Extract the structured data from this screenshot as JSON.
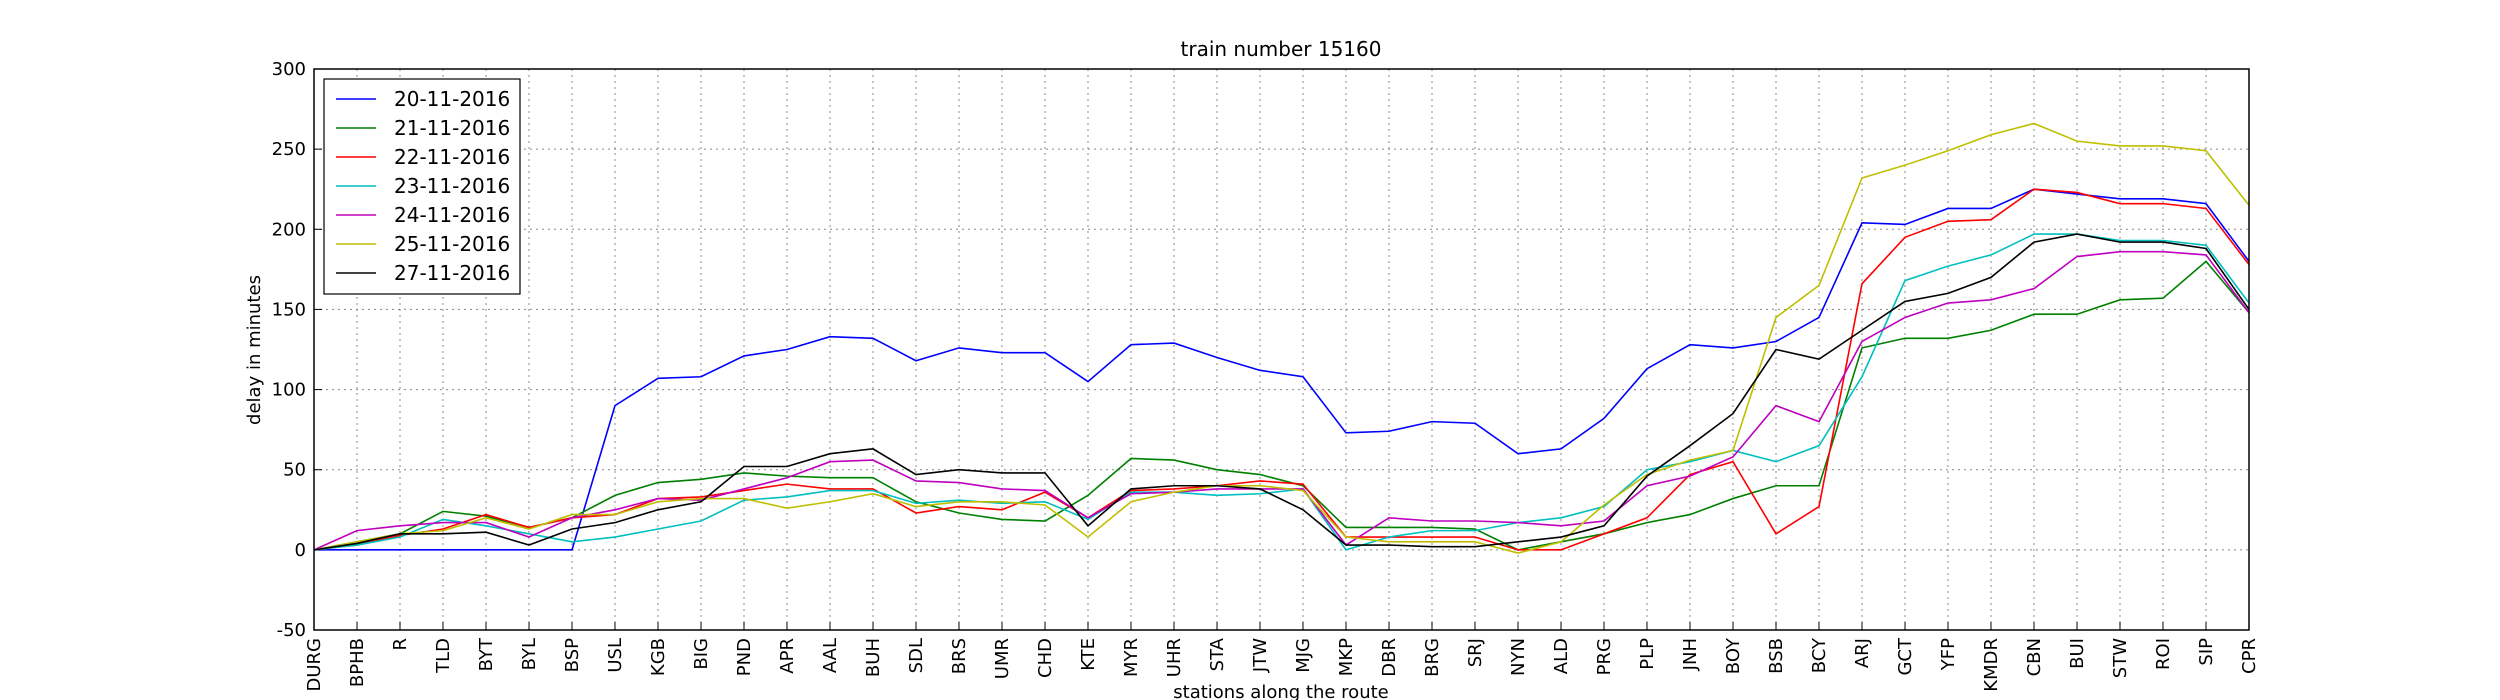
{
  "chart_data": {
    "type": "line",
    "title": "train number 15160",
    "xlabel": "stations along the route",
    "ylabel": "delay in minutes",
    "categories": [
      "DURG",
      "BPHB",
      "R",
      "TLD",
      "BYT",
      "BYL",
      "BSP",
      "USL",
      "KGB",
      "BIG",
      "PND",
      "APR",
      "AAL",
      "BUH",
      "SDL",
      "BRS",
      "UMR",
      "CHD",
      "KTE",
      "MYR",
      "UHR",
      "STA",
      "JTW",
      "MJG",
      "MKP",
      "DBR",
      "BRG",
      "SRJ",
      "NYN",
      "ALD",
      "PRG",
      "PLP",
      "JNH",
      "BOY",
      "BSB",
      "BCY",
      "ARJ",
      "GCT",
      "YFP",
      "KMDR",
      "CBN",
      "BUI",
      "STW",
      "ROI",
      "SIP",
      "CPR"
    ],
    "series": [
      {
        "name": "20-11-2016",
        "color": "#0000ff",
        "values": [
          0,
          0,
          0,
          0,
          0,
          0,
          0,
          90,
          107,
          108,
          121,
          125,
          133,
          132,
          118,
          126,
          123,
          123,
          105,
          128,
          129,
          120,
          112,
          108,
          73,
          74,
          80,
          79,
          60,
          63,
          82,
          113,
          128,
          126,
          130,
          145,
          204,
          203,
          213,
          213,
          225,
          222,
          219,
          219,
          216,
          180
        ]
      },
      {
        "name": "21-11-2016",
        "color": "#008000",
        "values": [
          0,
          5,
          10,
          24,
          21,
          14,
          20,
          34,
          42,
          44,
          48,
          46,
          45,
          45,
          30,
          23,
          19,
          18,
          34,
          57,
          56,
          50,
          47,
          40,
          14,
          14,
          14,
          13,
          0,
          5,
          10,
          17,
          22,
          32,
          40,
          40,
          126,
          132,
          132,
          137,
          147,
          147,
          156,
          157,
          180,
          148
        ]
      },
      {
        "name": "22-11-2016",
        "color": "#ff0000",
        "values": [
          0,
          3,
          9,
          13,
          22,
          14,
          20,
          22,
          32,
          33,
          37,
          41,
          38,
          38,
          23,
          27,
          25,
          36,
          20,
          37,
          38,
          40,
          43,
          41,
          8,
          8,
          8,
          8,
          0,
          0,
          10,
          20,
          47,
          55,
          10,
          27,
          166,
          195,
          205,
          206,
          225,
          223,
          216,
          216,
          213,
          178
        ]
      },
      {
        "name": "23-11-2016",
        "color": "#00bfbf",
        "values": [
          0,
          3,
          8,
          19,
          15,
          10,
          5,
          8,
          13,
          18,
          31,
          33,
          37,
          37,
          29,
          31,
          29,
          30,
          19,
          36,
          36,
          34,
          35,
          38,
          0,
          8,
          12,
          12,
          17,
          20,
          27,
          50,
          55,
          62,
          55,
          65,
          108,
          168,
          177,
          184,
          197,
          197,
          193,
          193,
          190,
          154
        ]
      },
      {
        "name": "24-11-2016",
        "color": "#bf00bf",
        "values": [
          0,
          12,
          15,
          17,
          17,
          8,
          20,
          25,
          32,
          31,
          38,
          45,
          55,
          56,
          43,
          42,
          38,
          37,
          20,
          35,
          36,
          38,
          38,
          38,
          3,
          20,
          18,
          18,
          17,
          15,
          18,
          40,
          46,
          58,
          90,
          80,
          130,
          145,
          154,
          156,
          163,
          183,
          186,
          186,
          184,
          148
        ]
      },
      {
        "name": "25-11-2016",
        "color": "#bfbf00",
        "values": [
          0,
          5,
          10,
          12,
          20,
          13,
          22,
          22,
          30,
          32,
          32,
          26,
          30,
          35,
          27,
          30,
          30,
          28,
          8,
          30,
          36,
          40,
          40,
          37,
          8,
          5,
          5,
          5,
          -2,
          5,
          28,
          47,
          56,
          62,
          145,
          165,
          232,
          240,
          249,
          259,
          266,
          255,
          252,
          252,
          249,
          215
        ]
      },
      {
        "name": "27-11-2016",
        "color": "#000000",
        "values": [
          0,
          4,
          10,
          10,
          11,
          3,
          13,
          17,
          25,
          30,
          52,
          52,
          60,
          63,
          47,
          50,
          48,
          48,
          15,
          38,
          40,
          40,
          38,
          25,
          3,
          3,
          2,
          2,
          5,
          8,
          15,
          46,
          65,
          85,
          125,
          119,
          137,
          155,
          160,
          170,
          192,
          197,
          192,
          192,
          188,
          150
        ]
      }
    ],
    "ylim": [
      -50,
      300
    ],
    "yticks": [
      -50,
      0,
      50,
      100,
      150,
      200,
      250,
      300
    ],
    "grid": true,
    "legend": "upper left"
  }
}
